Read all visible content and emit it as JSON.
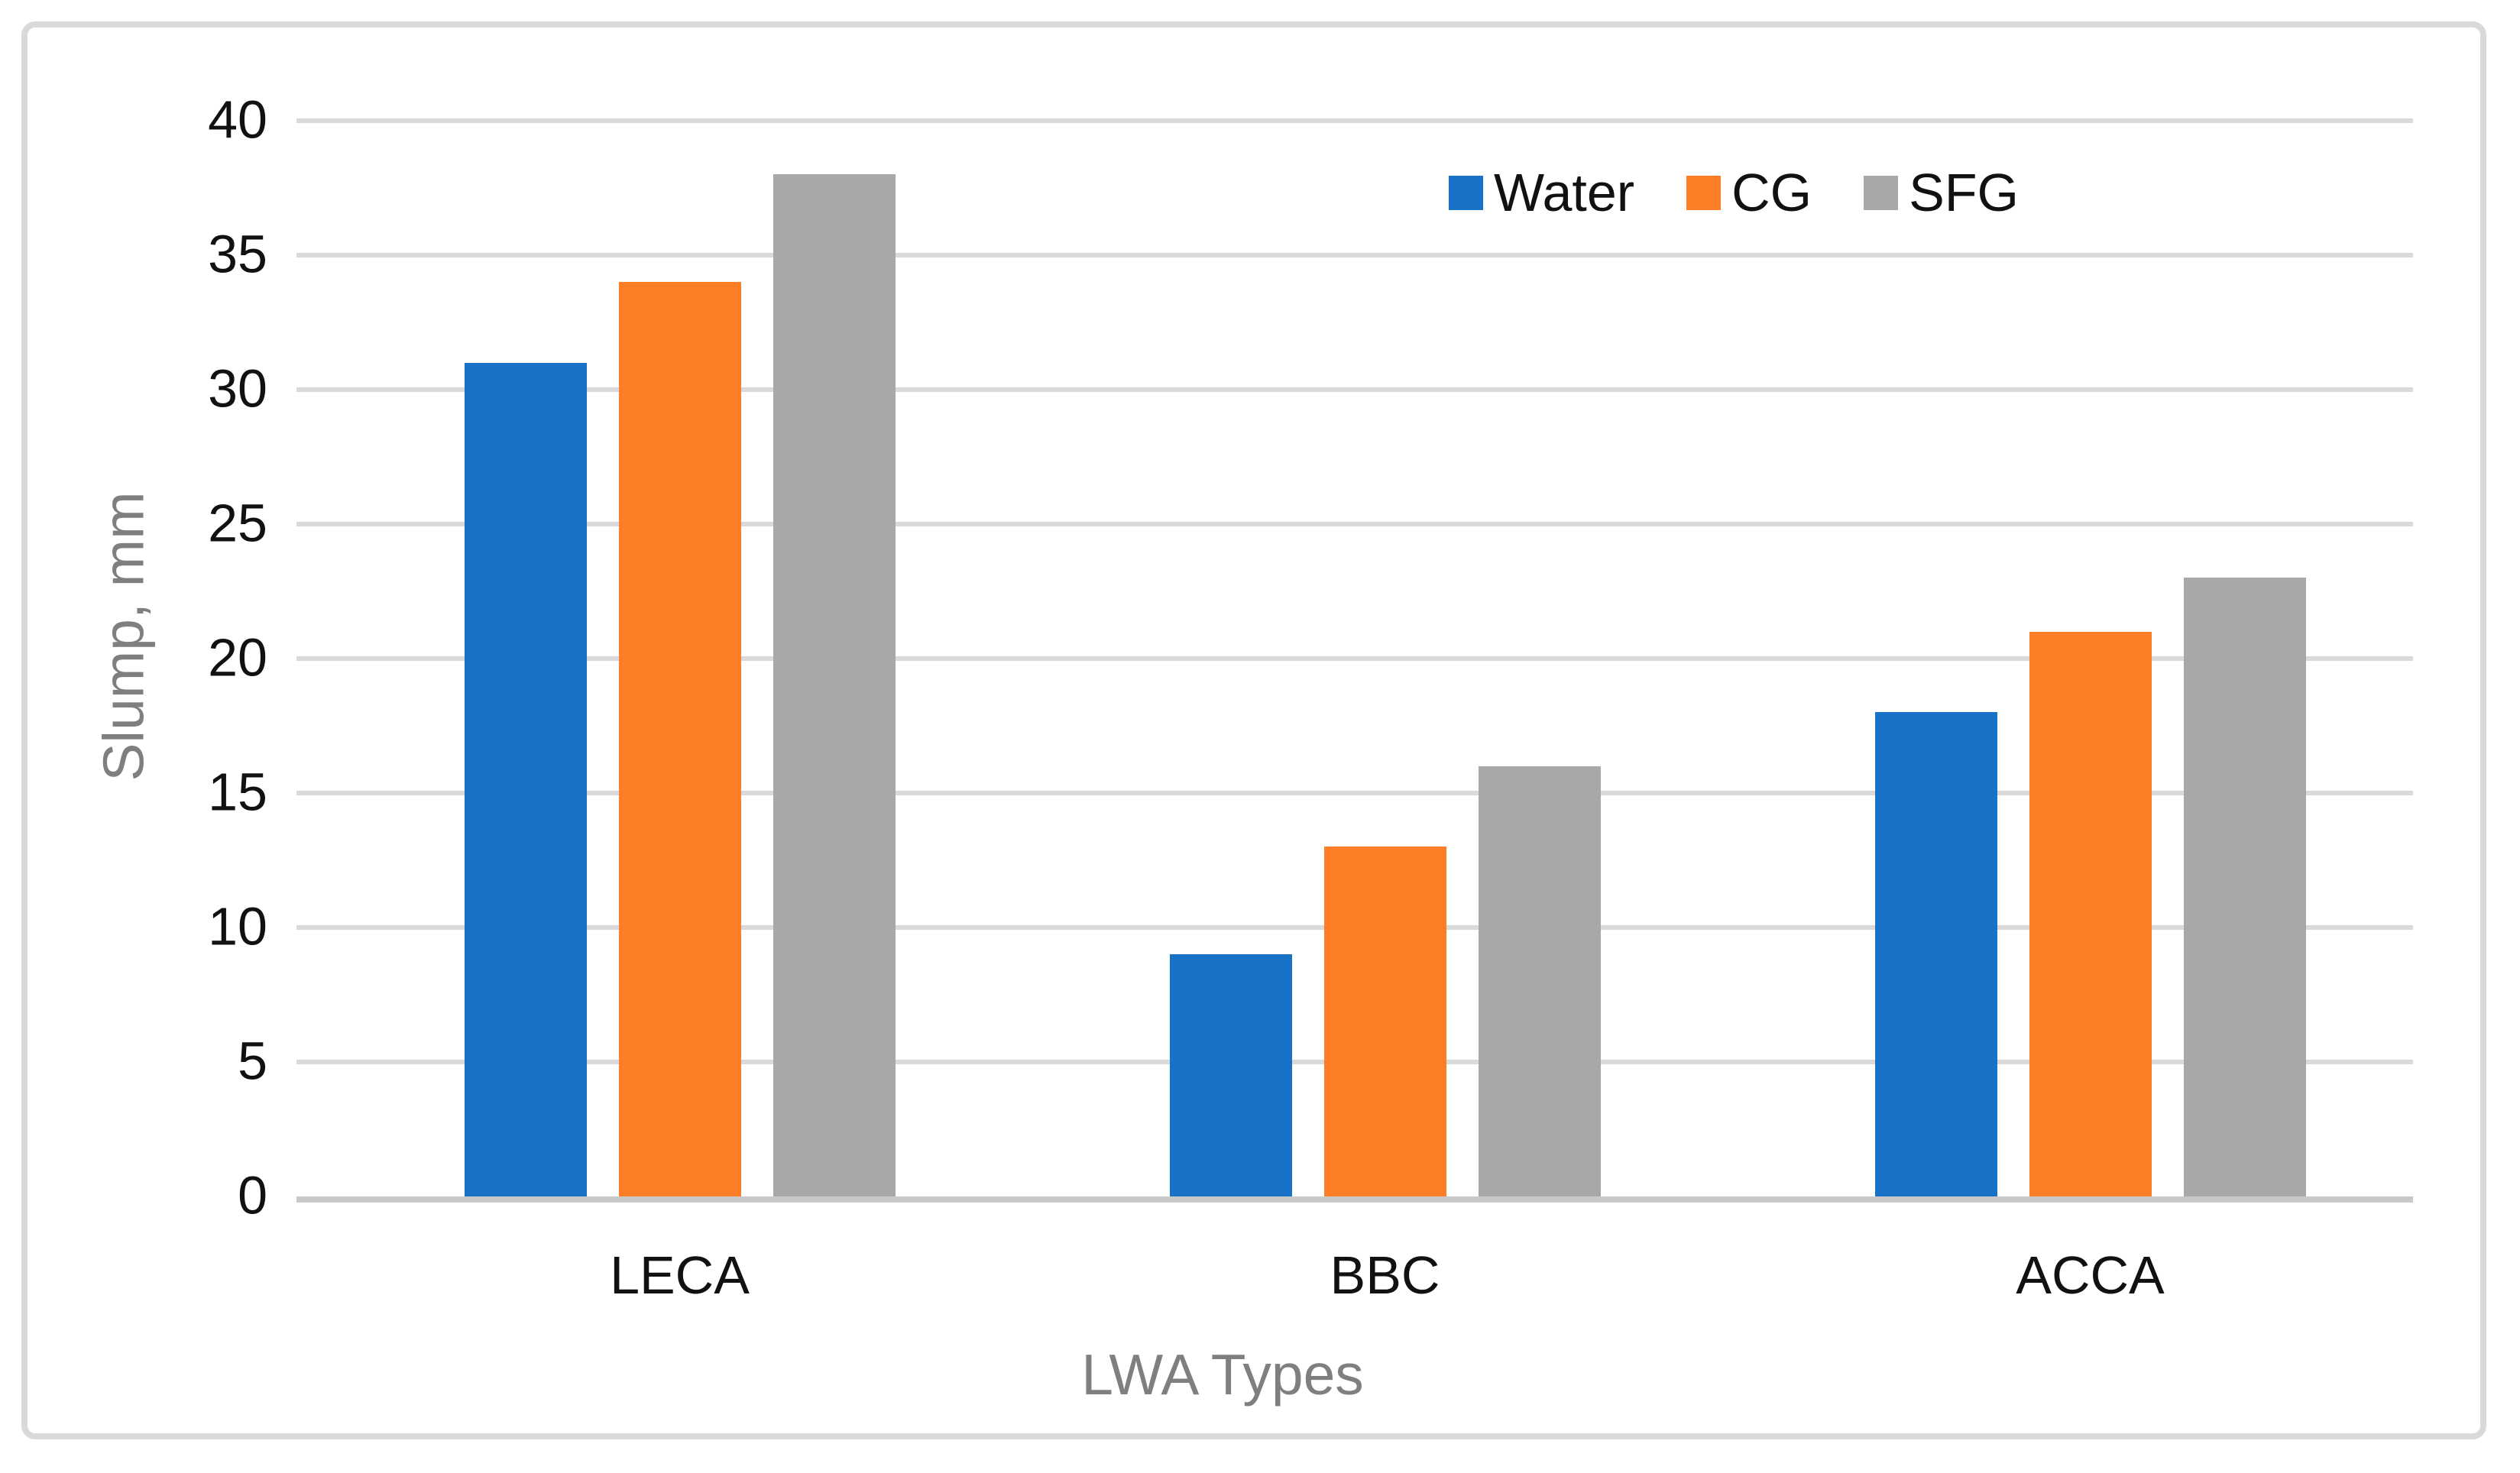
{
  "figure": {
    "background": "#FFFFFF",
    "border_color": "#D9D9D9"
  },
  "chart_data": {
    "type": "bar",
    "title": "",
    "xlabel": "LWA Types",
    "ylabel": "Slump, mm",
    "categories": [
      "LECA",
      "BBC",
      "ACCA"
    ],
    "series": [
      {
        "name": "Water",
        "color": "#1772C8",
        "values": [
          31,
          9,
          18
        ]
      },
      {
        "name": "CG",
        "color": "#FD7E26",
        "values": [
          34,
          13,
          21
        ]
      },
      {
        "name": "SFG",
        "color": "#A8A8A8",
        "values": [
          38,
          16,
          23
        ]
      }
    ],
    "ylim": [
      0,
      40
    ],
    "ytick_step": 5,
    "yticks": [
      0,
      5,
      10,
      15,
      20,
      25,
      30,
      35,
      40
    ],
    "grid": "horizontal",
    "gridline_color": "#D9D9D9",
    "axis_line_color": "#C9C9C9",
    "tick_label_color": "#111111",
    "axis_title_color": "#7F7F7F",
    "legend_position": "inside-top-right"
  }
}
